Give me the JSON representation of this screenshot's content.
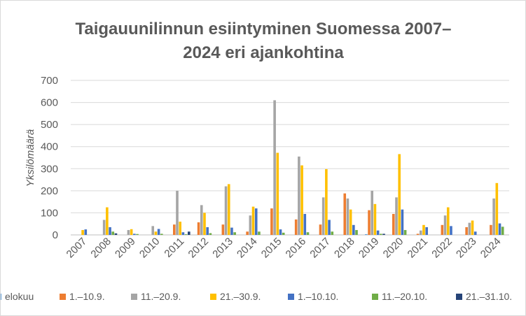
{
  "chart_data": {
    "type": "bar",
    "title_lines": [
      "Taigauunilinnun esiintyminen Suomessa 2007–",
      "2024 eri ajankohtina"
    ],
    "ylabel": "Yksilömäärä",
    "xlabel": "",
    "ylim": [
      0,
      700
    ],
    "yticks": [
      0,
      100,
      200,
      300,
      400,
      500,
      600,
      700
    ],
    "grid": true,
    "legend_position": "bottom",
    "categories": [
      "2007",
      "2008",
      "2009",
      "2010",
      "2011",
      "2012",
      "2013",
      "2014",
      "2015",
      "2016",
      "2017",
      "2018",
      "2019",
      "2020",
      "2021",
      "2022",
      "2023",
      "2024"
    ],
    "series": [
      {
        "name": "elokuu",
        "color": "#5b9bd5",
        "values": [
          0,
          0,
          0,
          0,
          0,
          0,
          0,
          0,
          0,
          0,
          0,
          0,
          3,
          0,
          0,
          0,
          0,
          0
        ]
      },
      {
        "name": "1.–10.9.",
        "color": "#ed7d31",
        "values": [
          0,
          0,
          0,
          0,
          47,
          57,
          47,
          15,
          120,
          70,
          47,
          188,
          112,
          95,
          5,
          45,
          35,
          45
        ]
      },
      {
        "name": "11.–20.9.",
        "color": "#a5a5a5",
        "values": [
          0,
          68,
          22,
          40,
          200,
          135,
          220,
          88,
          610,
          355,
          170,
          165,
          200,
          170,
          20,
          88,
          55,
          165
        ]
      },
      {
        "name": "21.–30.9.",
        "color": "#ffc000",
        "values": [
          22,
          125,
          26,
          15,
          60,
          100,
          230,
          128,
          372,
          315,
          298,
          115,
          140,
          366,
          45,
          125,
          65,
          235
        ]
      },
      {
        "name": "1.–10.10.",
        "color": "#4472c4",
        "values": [
          25,
          35,
          5,
          27,
          12,
          35,
          33,
          120,
          25,
          95,
          68,
          45,
          20,
          115,
          35,
          40,
          15,
          52
        ]
      },
      {
        "name": "11.–20.10.",
        "color": "#70ad47",
        "values": [
          0,
          15,
          4,
          5,
          3,
          8,
          12,
          15,
          10,
          12,
          15,
          22,
          5,
          22,
          0,
          0,
          0,
          37
        ]
      },
      {
        "name": "21.–31.10.",
        "color": "#264478",
        "values": [
          0,
          7,
          0,
          0,
          15,
          0,
          0,
          0,
          0,
          0,
          0,
          0,
          5,
          0,
          0,
          0,
          0,
          0
        ]
      }
    ]
  }
}
